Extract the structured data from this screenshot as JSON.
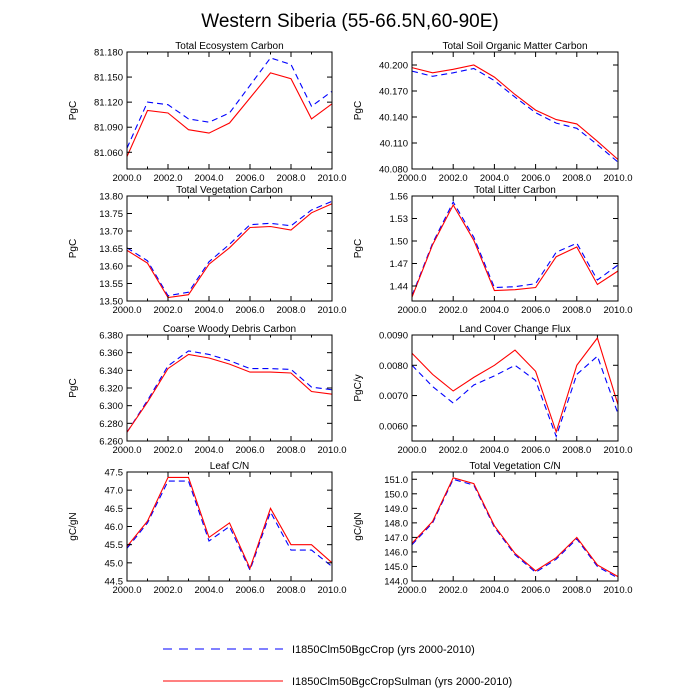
{
  "figure": {
    "title": "Western Siberia (55-66.5N,60-90E)"
  },
  "legend": [
    {
      "label": "I1850Clm50BgcCrop (yrs 2000-2010)",
      "color": "#0000ff",
      "dash": "dashed"
    },
    {
      "label": "I1850Clm50BgcCropSulman (yrs 2000-2010)",
      "color": "#ff0000",
      "dash": "solid"
    }
  ],
  "chart_data": [
    {
      "type": "line",
      "title": "Total Ecosystem Carbon",
      "ylabel": "PgC",
      "x": [
        2000,
        2001,
        2002,
        2003,
        2004,
        2005,
        2006,
        2007,
        2008,
        2009,
        2010
      ],
      "xlim": [
        2000,
        2010
      ],
      "xticks": [
        2000,
        2002,
        2004,
        2006,
        2008,
        2010
      ],
      "xtick_labels": [
        "2000.0",
        "2002.0",
        "2004.0",
        "2006.0",
        "2008.0",
        "2010.0"
      ],
      "ylim": [
        81.04,
        81.18
      ],
      "yticks": [
        81.06,
        81.09,
        81.12,
        81.15,
        81.18
      ],
      "ytick_labels": [
        "81.060",
        "81.090",
        "81.120",
        "81.150",
        "81.180"
      ],
      "series": [
        {
          "name": "I1850Clm50BgcCrop (yrs 2000-2010)",
          "values": [
            81.065,
            81.12,
            81.117,
            81.1,
            81.096,
            81.107,
            81.14,
            81.173,
            81.165,
            81.115,
            81.133
          ]
        },
        {
          "name": "I1850Clm50BgcCropSulman (yrs 2000-2010)",
          "values": [
            81.055,
            81.11,
            81.107,
            81.087,
            81.083,
            81.095,
            81.125,
            81.155,
            81.148,
            81.1,
            81.118
          ]
        }
      ]
    },
    {
      "type": "line",
      "title": "Total Soil Organic Matter Carbon",
      "ylabel": "PgC",
      "x": [
        2000,
        2001,
        2002,
        2003,
        2004,
        2005,
        2006,
        2007,
        2008,
        2009,
        2010
      ],
      "xlim": [
        2000,
        2010
      ],
      "xticks": [
        2000,
        2002,
        2004,
        2006,
        2008,
        2010
      ],
      "xtick_labels": [
        "2000.0",
        "2002.0",
        "2004.0",
        "2006.0",
        "2008.0",
        "2010.0"
      ],
      "ylim": [
        40.08,
        40.215
      ],
      "yticks": [
        40.08,
        40.11,
        40.14,
        40.17,
        40.2
      ],
      "ytick_labels": [
        "40.080",
        "40.110",
        "40.140",
        "40.170",
        "40.200"
      ],
      "series": [
        {
          "name": "I1850Clm50BgcCrop (yrs 2000-2010)",
          "values": [
            40.193,
            40.187,
            40.191,
            40.196,
            40.182,
            40.163,
            40.145,
            40.133,
            40.127,
            40.108,
            40.088
          ]
        },
        {
          "name": "I1850Clm50BgcCropSulman (yrs 2000-2010)",
          "values": [
            40.197,
            40.191,
            40.195,
            40.2,
            40.186,
            40.166,
            40.148,
            40.137,
            40.132,
            40.112,
            40.091
          ]
        }
      ]
    },
    {
      "type": "line",
      "title": "Total Vegetation Carbon",
      "ylabel": "PgC",
      "x": [
        2000,
        2001,
        2002,
        2003,
        2004,
        2005,
        2006,
        2007,
        2008,
        2009,
        2010
      ],
      "xlim": [
        2000,
        2010
      ],
      "xticks": [
        2000,
        2002,
        2004,
        2006,
        2008,
        2010
      ],
      "xtick_labels": [
        "2000.0",
        "2002.0",
        "2004.0",
        "2006.0",
        "2008.0",
        "2010.0"
      ],
      "ylim": [
        13.5,
        13.8
      ],
      "yticks": [
        13.5,
        13.55,
        13.6,
        13.65,
        13.7,
        13.75,
        13.8
      ],
      "ytick_labels": [
        "13.50",
        "13.55",
        "13.60",
        "13.65",
        "13.70",
        "13.75",
        "13.80"
      ],
      "series": [
        {
          "name": "I1850Clm50BgcCrop (yrs 2000-2010)",
          "values": [
            13.652,
            13.615,
            13.515,
            13.525,
            13.612,
            13.662,
            13.718,
            13.722,
            13.715,
            13.76,
            13.785
          ]
        },
        {
          "name": "I1850Clm50BgcCropSulman (yrs 2000-2010)",
          "values": [
            13.645,
            13.608,
            13.51,
            13.518,
            13.605,
            13.652,
            13.71,
            13.713,
            13.703,
            13.752,
            13.778
          ]
        }
      ]
    },
    {
      "type": "line",
      "title": "Total Litter Carbon",
      "ylabel": "PgC",
      "x": [
        2000,
        2001,
        2002,
        2003,
        2004,
        2005,
        2006,
        2007,
        2008,
        2009,
        2010
      ],
      "xlim": [
        2000,
        2010
      ],
      "xticks": [
        2000,
        2002,
        2004,
        2006,
        2008,
        2010
      ],
      "xtick_labels": [
        "2000.0",
        "2002.0",
        "2004.0",
        "2006.0",
        "2008.0",
        "2010.0"
      ],
      "ylim": [
        1.42,
        1.56
      ],
      "yticks": [
        1.44,
        1.47,
        1.5,
        1.53,
        1.56
      ],
      "ytick_labels": [
        "1.44",
        "1.47",
        "1.50",
        "1.53",
        "1.56"
      ],
      "series": [
        {
          "name": "I1850Clm50BgcCrop (yrs 2000-2010)",
          "values": [
            1.427,
            1.497,
            1.552,
            1.505,
            1.438,
            1.439,
            1.443,
            1.485,
            1.497,
            1.448,
            1.468
          ]
        },
        {
          "name": "I1850Clm50BgcCropSulman (yrs 2000-2010)",
          "values": [
            1.425,
            1.495,
            1.548,
            1.501,
            1.434,
            1.435,
            1.438,
            1.479,
            1.492,
            1.442,
            1.46
          ]
        }
      ]
    },
    {
      "type": "line",
      "title": "Coarse Woody Debris Carbon",
      "ylabel": "PgC",
      "x": [
        2000,
        2001,
        2002,
        2003,
        2004,
        2005,
        2006,
        2007,
        2008,
        2009,
        2010
      ],
      "xlim": [
        2000,
        2010
      ],
      "xticks": [
        2000,
        2002,
        2004,
        2006,
        2008,
        2010
      ],
      "xtick_labels": [
        "2000.0",
        "2002.0",
        "2004.0",
        "2006.0",
        "2008.0",
        "2010.0"
      ],
      "ylim": [
        6.26,
        6.38
      ],
      "yticks": [
        6.26,
        6.28,
        6.3,
        6.32,
        6.34,
        6.36,
        6.38
      ],
      "ytick_labels": [
        "6.260",
        "6.280",
        "6.300",
        "6.320",
        "6.340",
        "6.360",
        "6.380"
      ],
      "series": [
        {
          "name": "I1850Clm50BgcCrop (yrs 2000-2010)",
          "values": [
            6.27,
            6.306,
            6.345,
            6.362,
            6.358,
            6.351,
            6.342,
            6.342,
            6.341,
            6.321,
            6.318
          ]
        },
        {
          "name": "I1850Clm50BgcCropSulman (yrs 2000-2010)",
          "values": [
            6.27,
            6.304,
            6.342,
            6.358,
            6.354,
            6.347,
            6.338,
            6.338,
            6.337,
            6.316,
            6.313
          ]
        }
      ]
    },
    {
      "type": "line",
      "title": "Land Cover Change Flux",
      "ylabel": "PgC/y",
      "x": [
        2000,
        2001,
        2002,
        2003,
        2004,
        2005,
        2006,
        2007,
        2008,
        2009,
        2010
      ],
      "xlim": [
        2000,
        2010
      ],
      "xticks": [
        2000,
        2002,
        2004,
        2006,
        2008,
        2010
      ],
      "xtick_labels": [
        "2000.0",
        "2002.0",
        "2004.0",
        "2006.0",
        "2008.0",
        "2010.0"
      ],
      "ylim": [
        0.0055,
        0.009
      ],
      "yticks": [
        0.006,
        0.007,
        0.008,
        0.009
      ],
      "ytick_labels": [
        "0.0060",
        "0.0070",
        "0.0080",
        "0.0090"
      ],
      "series": [
        {
          "name": "I1850Clm50BgcCrop (yrs 2000-2010)",
          "values": [
            0.008,
            0.0073,
            0.00675,
            0.00735,
            0.00765,
            0.008,
            0.0075,
            0.00565,
            0.0077,
            0.0083,
            0.0064
          ]
        },
        {
          "name": "I1850Clm50BgcCropSulman (yrs 2000-2010)",
          "values": [
            0.0084,
            0.0077,
            0.00715,
            0.0076,
            0.008,
            0.0085,
            0.0078,
            0.0058,
            0.008,
            0.0089,
            0.0067
          ]
        }
      ]
    },
    {
      "type": "line",
      "title": "Leaf C/N",
      "ylabel": "gC/gN",
      "x": [
        2000,
        2001,
        2002,
        2003,
        2004,
        2005,
        2006,
        2007,
        2008,
        2009,
        2010
      ],
      "xlim": [
        2000,
        2010
      ],
      "xticks": [
        2000,
        2002,
        2004,
        2006,
        2008,
        2010
      ],
      "xtick_labels": [
        "2000.0",
        "2002.0",
        "2004.0",
        "2006.0",
        "2008.0",
        "2010.0"
      ],
      "ylim": [
        44.5,
        47.5
      ],
      "yticks": [
        44.5,
        45,
        45.5,
        46,
        46.5,
        47,
        47.5
      ],
      "ytick_labels": [
        "44.5",
        "45.0",
        "45.5",
        "46.0",
        "46.5",
        "47.0",
        "47.5"
      ],
      "series": [
        {
          "name": "I1850Clm50BgcCrop (yrs 2000-2010)",
          "values": [
            45.4,
            46.1,
            47.25,
            47.25,
            45.6,
            46.0,
            44.8,
            46.4,
            45.35,
            45.35,
            44.9
          ]
        },
        {
          "name": "I1850Clm50BgcCropSulman (yrs 2000-2010)",
          "values": [
            45.45,
            46.15,
            47.35,
            47.35,
            45.7,
            46.1,
            44.85,
            46.5,
            45.5,
            45.5,
            45.0
          ]
        }
      ]
    },
    {
      "type": "line",
      "title": "Total Vegetation C/N",
      "ylabel": "gC/gN",
      "x": [
        2000,
        2001,
        2002,
        2003,
        2004,
        2005,
        2006,
        2007,
        2008,
        2009,
        2010
      ],
      "xlim": [
        2000,
        2010
      ],
      "xticks": [
        2000,
        2002,
        2004,
        2006,
        2008,
        2010
      ],
      "xtick_labels": [
        "2000.0",
        "2002.0",
        "2004.0",
        "2006.0",
        "2008.0",
        "2010.0"
      ],
      "ylim": [
        144,
        151.5
      ],
      "yticks": [
        144,
        145,
        146,
        147,
        148,
        149,
        150,
        151
      ],
      "ytick_labels": [
        "144.0",
        "145.0",
        "146.0",
        "147.0",
        "148.0",
        "149.0",
        "150.0",
        "151.0"
      ],
      "series": [
        {
          "name": "I1850Clm50BgcCrop (yrs 2000-2010)",
          "values": [
            146.5,
            148.0,
            151.0,
            150.6,
            147.7,
            145.8,
            144.6,
            145.5,
            146.9,
            145.0,
            144.2
          ]
        },
        {
          "name": "I1850Clm50BgcCropSulman (yrs 2000-2010)",
          "values": [
            146.6,
            148.1,
            151.1,
            150.7,
            147.8,
            145.9,
            144.7,
            145.6,
            147.0,
            145.1,
            144.3
          ]
        }
      ]
    }
  ]
}
